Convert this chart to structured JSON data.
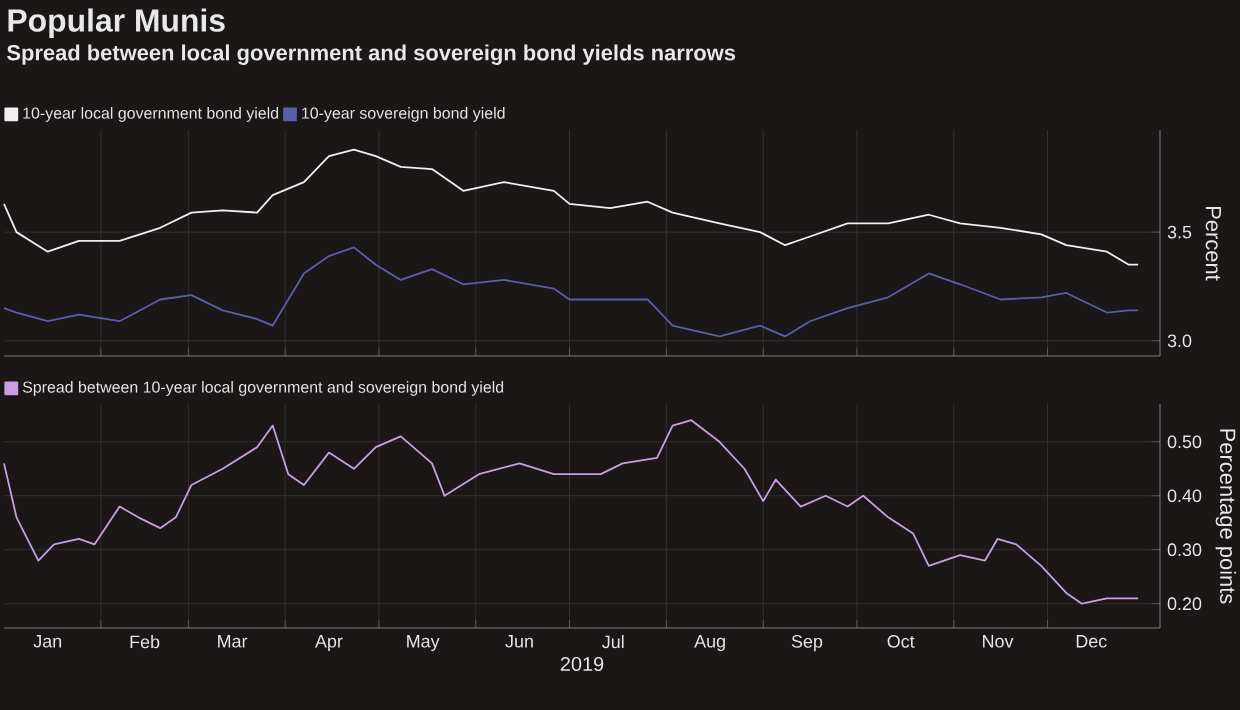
{
  "chart_data": [
    {
      "type": "line",
      "title": "Popular Munis",
      "subtitle": "Spread between local government and sovereign bond yields narrows",
      "ylabel": "Percent",
      "x": [
        "2019-01-01",
        "2019-01-05",
        "2019-01-15",
        "2019-01-25",
        "2019-02-07",
        "2019-02-20",
        "2019-03-02",
        "2019-03-12",
        "2019-03-23",
        "2019-03-28",
        "2019-04-07",
        "2019-04-15",
        "2019-04-23",
        "2019-04-30",
        "2019-05-08",
        "2019-05-18",
        "2019-05-28",
        "2019-06-10",
        "2019-06-26",
        "2019-07-01",
        "2019-07-14",
        "2019-07-26",
        "2019-08-03",
        "2019-08-18",
        "2019-08-31",
        "2019-09-08",
        "2019-09-16",
        "2019-09-28",
        "2019-10-11",
        "2019-10-24",
        "2019-11-03",
        "2019-11-16",
        "2019-11-29",
        "2019-12-07",
        "2019-12-20",
        "2019-12-27",
        "2019-12-30"
      ],
      "series": [
        {
          "name": "10-year local government bond yield",
          "color": "#f0f0f0",
          "values": [
            3.63,
            3.5,
            3.41,
            3.46,
            3.46,
            3.52,
            3.59,
            3.6,
            3.59,
            3.67,
            3.73,
            3.85,
            3.88,
            3.85,
            3.8,
            3.79,
            3.69,
            3.73,
            3.69,
            3.63,
            3.61,
            3.64,
            3.59,
            3.54,
            3.5,
            3.44,
            3.48,
            3.54,
            3.54,
            3.58,
            3.54,
            3.52,
            3.49,
            3.44,
            3.41,
            3.35,
            3.35
          ]
        },
        {
          "name": "10-year sovereign bond yield",
          "color": "#5a5fa8",
          "values": [
            3.15,
            3.13,
            3.09,
            3.12,
            3.09,
            3.19,
            3.21,
            3.14,
            3.1,
            3.07,
            3.31,
            3.39,
            3.43,
            3.35,
            3.28,
            3.33,
            3.26,
            3.28,
            3.24,
            3.19,
            3.19,
            3.19,
            3.07,
            3.02,
            3.07,
            3.02,
            3.09,
            3.15,
            3.2,
            3.31,
            3.26,
            3.19,
            3.2,
            3.22,
            3.13,
            3.14,
            3.14
          ]
        }
      ],
      "xlim": [
        "2019-01-01",
        "2020-01-06"
      ],
      "xticks": [
        {
          "value": "2019-02-01",
          "label": null
        },
        {
          "value": "2019-03-01",
          "label": null
        },
        {
          "value": "2019-04-01",
          "label": null
        },
        {
          "value": "2019-05-01",
          "label": null
        },
        {
          "value": "2019-06-01",
          "label": null
        },
        {
          "value": "2019-07-01",
          "label": null
        },
        {
          "value": "2019-08-01",
          "label": null
        },
        {
          "value": "2019-09-01",
          "label": null
        },
        {
          "value": "2019-10-01",
          "label": null
        },
        {
          "value": "2019-11-01",
          "label": null
        },
        {
          "value": "2019-12-01",
          "label": null
        }
      ],
      "ylim": [
        2.93,
        3.97
      ],
      "yticks": [
        {
          "value": 3.0,
          "label": "3.0"
        },
        {
          "value": 3.5,
          "label": "3.5"
        }
      ],
      "grid": true,
      "legend": "top left",
      "tick_labels": "y"
    },
    {
      "type": "line",
      "xlabel": "2019",
      "ylabel": "Percentage points",
      "series": [
        {
          "name": "Spread between 10-year local government and sovereign bond yield",
          "color": "#c8a0e0",
          "x": [
            "2019-01-01",
            "2019-01-05",
            "2019-01-12",
            "2019-01-17",
            "2019-01-25",
            "2019-01-30",
            "2019-02-07",
            "2019-02-13",
            "2019-02-20",
            "2019-02-25",
            "2019-03-02",
            "2019-03-12",
            "2019-03-23",
            "2019-03-28",
            "2019-04-02",
            "2019-04-07",
            "2019-04-15",
            "2019-04-23",
            "2019-04-30",
            "2019-05-08",
            "2019-05-18",
            "2019-05-22",
            "2019-06-02",
            "2019-06-15",
            "2019-06-26",
            "2019-07-11",
            "2019-07-18",
            "2019-07-29",
            "2019-08-03",
            "2019-08-09",
            "2019-08-18",
            "2019-08-26",
            "2019-09-01",
            "2019-09-05",
            "2019-09-13",
            "2019-09-21",
            "2019-09-28",
            "2019-10-03",
            "2019-10-11",
            "2019-10-19",
            "2019-10-24",
            "2019-11-03",
            "2019-11-11",
            "2019-11-15",
            "2019-11-21",
            "2019-11-29",
            "2019-12-07",
            "2019-12-12",
            "2019-12-20",
            "2019-12-24",
            "2019-12-30"
          ],
          "values": [
            0.46,
            0.36,
            0.28,
            0.31,
            0.32,
            0.31,
            0.38,
            0.36,
            0.34,
            0.36,
            0.42,
            0.45,
            0.49,
            0.53,
            0.44,
            0.42,
            0.48,
            0.45,
            0.49,
            0.51,
            0.46,
            0.4,
            0.44,
            0.46,
            0.44,
            0.44,
            0.46,
            0.47,
            0.53,
            0.54,
            0.5,
            0.45,
            0.39,
            0.43,
            0.38,
            0.4,
            0.38,
            0.4,
            0.36,
            0.33,
            0.27,
            0.29,
            0.28,
            0.32,
            0.31,
            0.27,
            0.22,
            0.2,
            0.21,
            0.21,
            0.21
          ]
        }
      ],
      "xlim": [
        "2019-01-01",
        "2020-01-06"
      ],
      "xticks": [
        {
          "value": "2019-01-15",
          "label": "Jan"
        },
        {
          "value": "2019-02-15",
          "label": "Feb"
        },
        {
          "value": "2019-03-15",
          "label": "Mar"
        },
        {
          "value": "2019-04-15",
          "label": "Apr"
        },
        {
          "value": "2019-05-15",
          "label": "May"
        },
        {
          "value": "2019-06-15",
          "label": "Jun"
        },
        {
          "value": "2019-07-15",
          "label": "Jul"
        },
        {
          "value": "2019-08-15",
          "label": "Aug"
        },
        {
          "value": "2019-09-15",
          "label": "Sep"
        },
        {
          "value": "2019-10-15",
          "label": "Oct"
        },
        {
          "value": "2019-11-15",
          "label": "Nov"
        },
        {
          "value": "2019-12-15",
          "label": "Dec"
        },
        {
          "value": "2019-02-01",
          "label": null
        },
        {
          "value": "2019-03-01",
          "label": null
        },
        {
          "value": "2019-04-01",
          "label": null
        },
        {
          "value": "2019-05-01",
          "label": null
        },
        {
          "value": "2019-06-01",
          "label": null
        },
        {
          "value": "2019-07-01",
          "label": null
        },
        {
          "value": "2019-08-01",
          "label": null
        },
        {
          "value": "2019-09-01",
          "label": null
        },
        {
          "value": "2019-10-01",
          "label": null
        },
        {
          "value": "2019-11-01",
          "label": null
        },
        {
          "value": "2019-12-01",
          "label": null
        }
      ],
      "ylim": [
        0.155,
        0.57
      ],
      "yticks": [
        {
          "value": 0.2,
          "label": "0.20"
        },
        {
          "value": 0.3,
          "label": "0.30"
        },
        {
          "value": 0.4,
          "label": "0.40"
        },
        {
          "value": 0.5,
          "label": "0.50"
        }
      ],
      "grid": true,
      "legend": "top left"
    }
  ]
}
